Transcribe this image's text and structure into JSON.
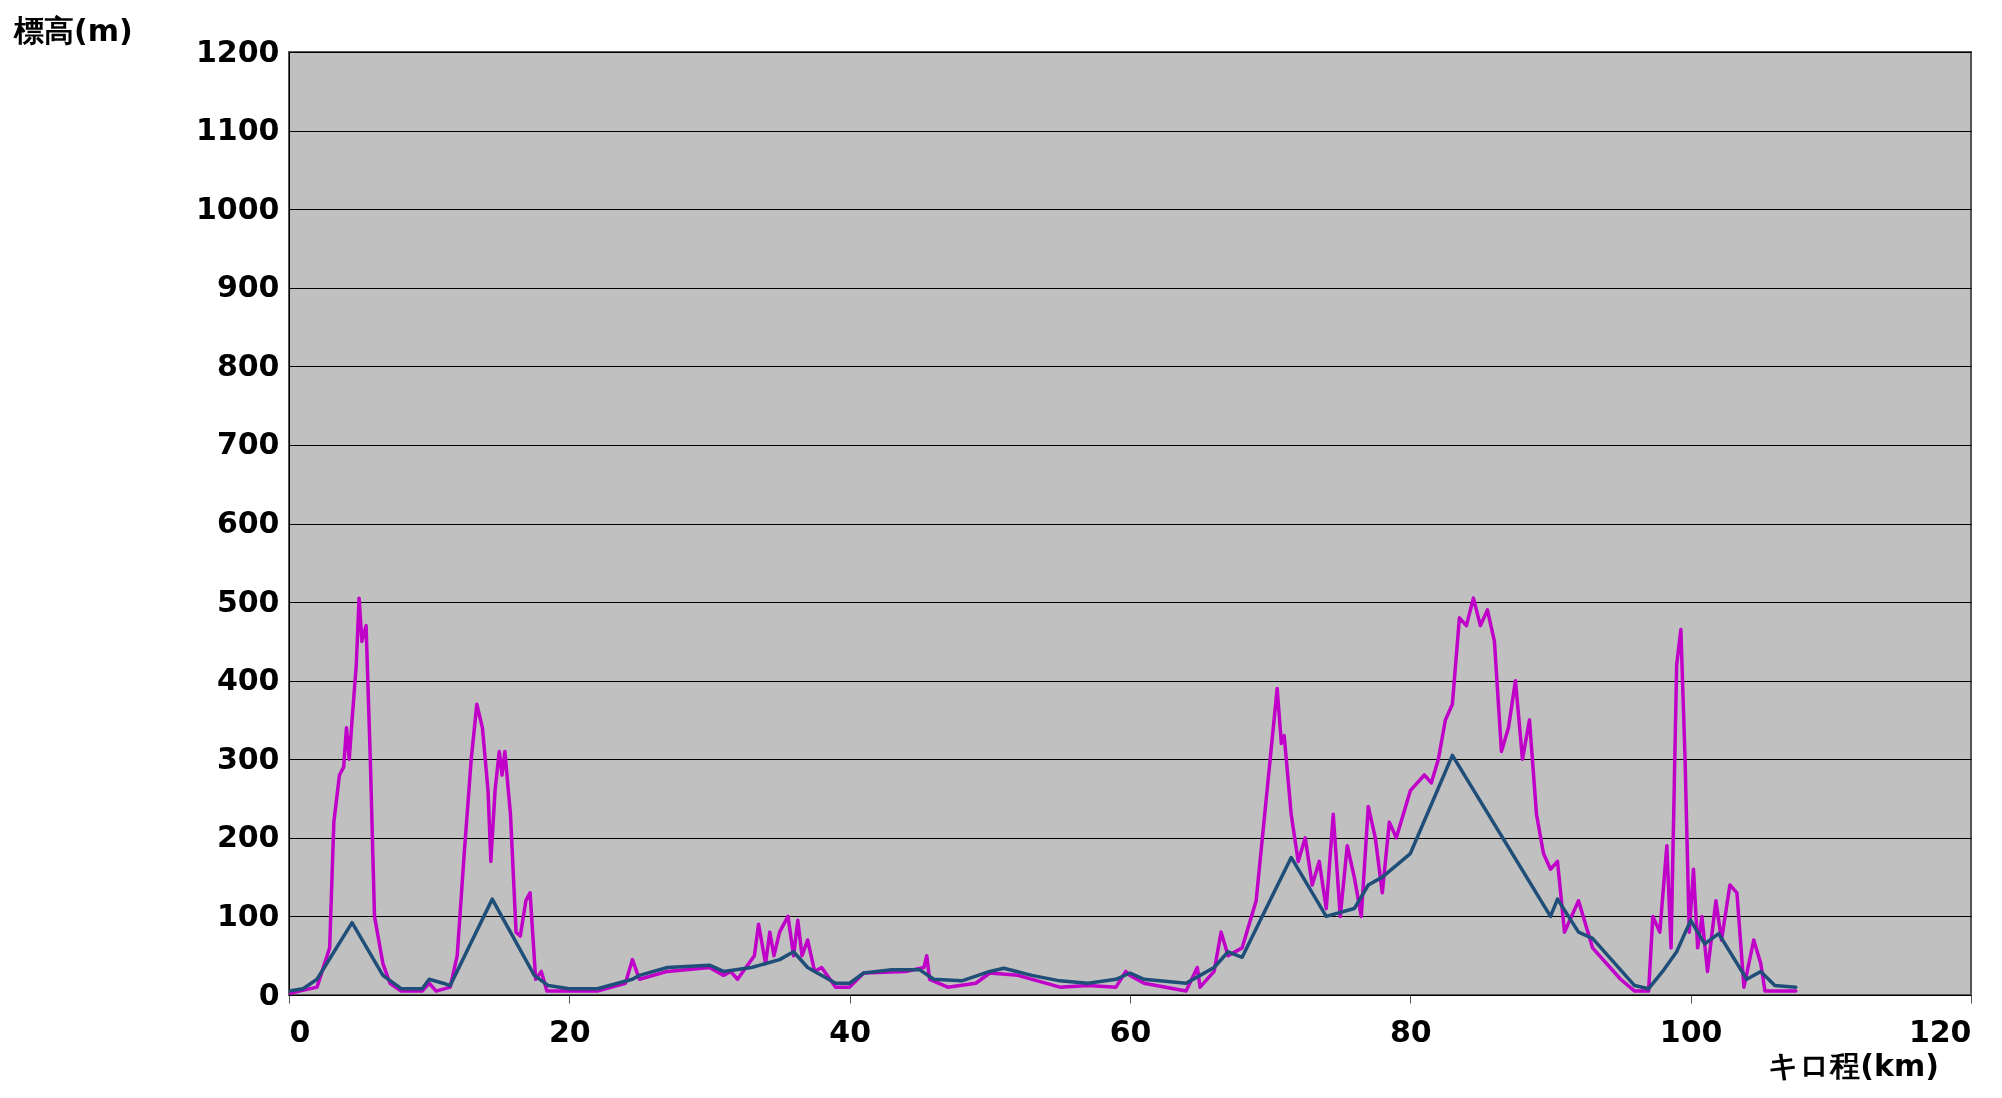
{
  "chart_data": {
    "type": "line",
    "xlabel": "キロ程(km)",
    "ylabel": "標高(m)",
    "xlim": [
      0,
      120
    ],
    "xticks": [
      0,
      20,
      40,
      60,
      80,
      100,
      120
    ],
    "ylim": [
      0,
      1200
    ],
    "yticks": [
      0,
      100,
      200,
      300,
      400,
      500,
      600,
      700,
      800,
      900,
      1000,
      1100,
      1200
    ],
    "grid": "y",
    "legend": false,
    "line_style": "solid",
    "marker": "none",
    "series": [
      {
        "color": "#c000c8",
        "x": [
          0,
          2,
          2.9,
          3.2,
          3.6,
          3.9,
          4.1,
          4.3,
          4.5,
          4.8,
          5.0,
          5.2,
          5.5,
          5.8,
          6.1,
          6.7,
          7.2,
          8,
          9.5,
          10,
          10.5,
          11.5,
          12,
          12.5,
          13,
          13.4,
          13.8,
          14.2,
          14.4,
          14.7,
          15,
          15.2,
          15.4,
          15.8,
          16.2,
          16.5,
          16.9,
          17.2,
          17.6,
          18,
          18.4,
          19,
          22,
          24,
          24.5,
          25,
          27,
          30,
          31,
          31.5,
          32,
          33.2,
          33.5,
          34,
          34.3,
          34.6,
          35,
          35.6,
          36,
          36.3,
          36.6,
          37,
          37.5,
          38,
          39,
          40,
          41,
          44,
          45.3,
          45.5,
          45.7,
          47,
          49,
          50,
          52,
          55,
          57,
          59,
          59.7,
          60,
          61,
          64,
          64.8,
          65,
          66,
          66.5,
          67,
          68,
          69,
          70,
          70.5,
          70.8,
          71,
          71.5,
          72,
          72.5,
          73,
          73.5,
          74,
          74.5,
          75,
          75.5,
          76,
          76.5,
          77,
          77.5,
          78,
          78.5,
          79,
          80,
          81,
          81.5,
          82,
          82.5,
          83,
          83.5,
          84,
          84.5,
          85,
          85.5,
          86,
          86.5,
          87,
          87.5,
          88,
          88.5,
          89,
          89.5,
          90,
          90.5,
          91,
          92,
          93,
          95,
          96,
          97,
          97.3,
          97.8,
          98.3,
          98.6,
          99,
          99.3,
          99.6,
          99.9,
          100.2,
          100.5,
          100.8,
          101.2,
          101.8,
          102.2,
          102.8,
          103.3,
          103.8,
          104.5,
          105,
          105.3,
          107.5
        ],
        "values": [
          2,
          10,
          60,
          220,
          280,
          290,
          340,
          300,
          350,
          420,
          505,
          450,
          470,
          300,
          100,
          40,
          15,
          5,
          5,
          15,
          5,
          10,
          50,
          180,
          300,
          370,
          340,
          260,
          170,
          260,
          310,
          280,
          310,
          230,
          80,
          75,
          120,
          130,
          20,
          30,
          5,
          5,
          5,
          15,
          45,
          20,
          30,
          35,
          25,
          30,
          20,
          50,
          90,
          40,
          80,
          50,
          80,
          100,
          50,
          95,
          50,
          70,
          30,
          35,
          10,
          10,
          28,
          30,
          35,
          50,
          20,
          10,
          15,
          28,
          25,
          10,
          12,
          10,
          30,
          25,
          15,
          5,
          35,
          10,
          30,
          80,
          50,
          60,
          120,
          300,
          390,
          320,
          330,
          230,
          170,
          200,
          140,
          170,
          110,
          230,
          100,
          190,
          150,
          100,
          240,
          200,
          130,
          220,
          200,
          260,
          280,
          270,
          300,
          350,
          370,
          480,
          470,
          505,
          470,
          490,
          450,
          310,
          340,
          400,
          300,
          350,
          230,
          180,
          160,
          170,
          80,
          120,
          60,
          20,
          5,
          5,
          100,
          80,
          190,
          60,
          420,
          465,
          300,
          80,
          160,
          60,
          100,
          30,
          120,
          70,
          140,
          130,
          10,
          70,
          40,
          5,
          5
        ]
      },
      {
        "color": "#1f4e79",
        "x": [
          0,
          1,
          2,
          4.5,
          6.7,
          8,
          9.5,
          10,
          11,
          11.5,
          14.5,
          17.5,
          18.5,
          20,
          22,
          24.5,
          25,
          27,
          30,
          31,
          33,
          35,
          36,
          37,
          39,
          40,
          41,
          43,
          45,
          46,
          48,
          50,
          51,
          53,
          55,
          57,
          59,
          60,
          61,
          64,
          65,
          66,
          67,
          68,
          71.5,
          74,
          76,
          77,
          78,
          80,
          83,
          90,
          90.5,
          92,
          93,
          96,
          97,
          98,
          99,
          100,
          101,
          102,
          104,
          105,
          106,
          107.5
        ],
        "values": [
          5,
          8,
          20,
          92,
          25,
          8,
          8,
          20,
          15,
          12,
          122,
          25,
          12,
          8,
          8,
          20,
          25,
          35,
          38,
          30,
          35,
          45,
          55,
          35,
          15,
          15,
          28,
          32,
          32,
          20,
          18,
          30,
          34,
          25,
          18,
          15,
          20,
          28,
          20,
          15,
          25,
          35,
          55,
          48,
          175,
          100,
          110,
          140,
          150,
          180,
          305,
          100,
          122,
          80,
          72,
          12,
          8,
          30,
          55,
          95,
          65,
          78,
          20,
          30,
          12,
          10
        ]
      }
    ]
  }
}
